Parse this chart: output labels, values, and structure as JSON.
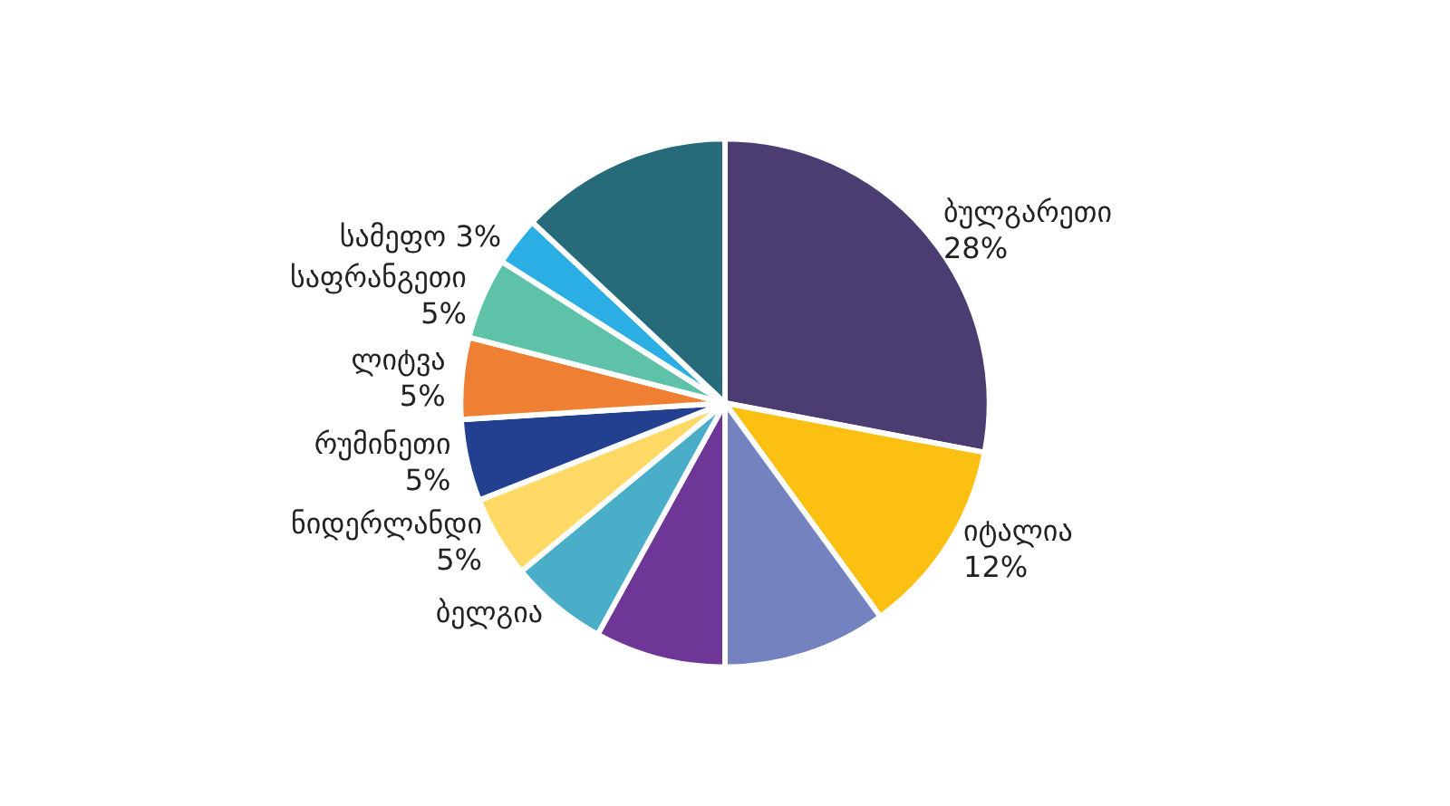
{
  "chart_data": {
    "type": "pie",
    "categories": [
      "ბულგარეთი",
      "იტალია",
      null,
      null,
      "ბელგია",
      "ნიდერლანდი",
      "რუმინეთი",
      "ლიტვა",
      "საფრანგეთი",
      "სამეფო",
      null
    ],
    "values": [
      28,
      12,
      10,
      8,
      6,
      5,
      5,
      5,
      5,
      3,
      13
    ],
    "colors": [
      "#4b3d71",
      "#fcc012",
      "#7482c0",
      "#6e3797",
      "#4aaec8",
      "#fed966",
      "#233f8f",
      "#ef8033",
      "#5dc2a8",
      "#2aaee3",
      "#276a7a"
    ],
    "value_labels": [
      "28%",
      "12%",
      null,
      null,
      null,
      "5%",
      "5%",
      "5%",
      "5%",
      "3%",
      null
    ]
  }
}
